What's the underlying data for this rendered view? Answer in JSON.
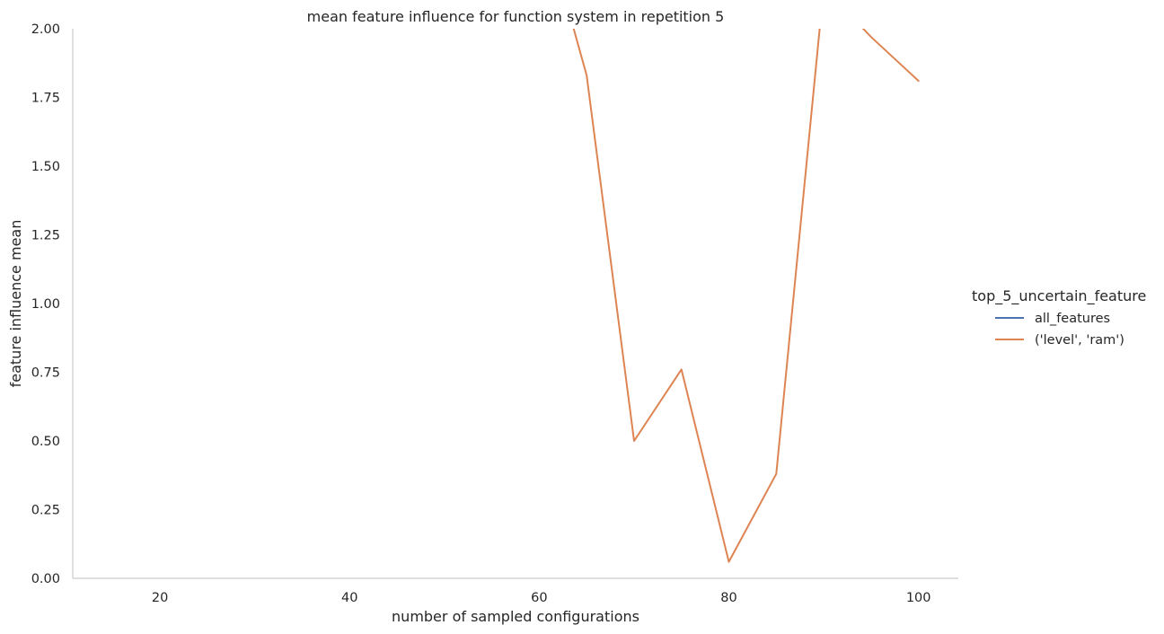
{
  "chart_data": {
    "type": "line",
    "title": "mean feature influence for function system in repetition 5",
    "xlabel": "number of sampled configurations",
    "ylabel": "feature influence mean",
    "xlim": [
      10.8,
      104.2
    ],
    "ylim": [
      0,
      2.0
    ],
    "xticks": [
      20,
      40,
      60,
      80,
      100
    ],
    "yticks": [
      0.0,
      0.25,
      0.5,
      0.75,
      1.0,
      1.25,
      1.5,
      1.75,
      2.0
    ],
    "xtick_labels": [
      "20",
      "40",
      "60",
      "80",
      "100"
    ],
    "ytick_labels": [
      "0.00",
      "0.25",
      "0.50",
      "0.75",
      "1.00",
      "1.25",
      "1.50",
      "1.75",
      "2.00"
    ],
    "grid": false,
    "legend": {
      "title": "top_5_uncertain_feature",
      "placement": "right"
    },
    "series": [
      {
        "name": "all_features",
        "color": "#4c72b0",
        "x": [],
        "y": []
      },
      {
        "name": "('level', 'ram')",
        "color": "#dd8452",
        "x": [
          60,
          65,
          70,
          75,
          80,
          85,
          90,
          95,
          100
        ],
        "y": [
          2.45,
          1.83,
          0.5,
          0.76,
          0.06,
          0.38,
          2.15,
          1.97,
          1.81
        ]
      }
    ]
  }
}
